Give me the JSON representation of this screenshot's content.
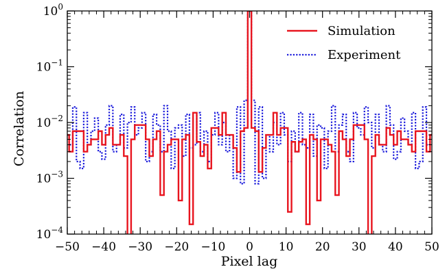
{
  "chart_data": {
    "type": "line",
    "xlabel": "Pixel lag",
    "ylabel": "Correlation",
    "xlim": [
      -50,
      50
    ],
    "ylim": [
      0.0001,
      1
    ],
    "yscale": "log",
    "step": "mid",
    "xticks": [
      "−50",
      "−40",
      "−30",
      "−20",
      "−10",
      "0",
      "10",
      "20",
      "30",
      "40",
      "50"
    ],
    "xtick_values": [
      -50,
      -40,
      -30,
      -20,
      -10,
      0,
      10,
      20,
      30,
      40,
      50
    ],
    "yticks": [
      {
        "value": 0.0001,
        "base": "10",
        "exp": "−4"
      },
      {
        "value": 0.001,
        "base": "10",
        "exp": "−3"
      },
      {
        "value": 0.01,
        "base": "10",
        "exp": "−2"
      },
      {
        "value": 0.1,
        "base": "10",
        "exp": "−1"
      },
      {
        "value": 1,
        "base": "10",
        "exp": "0"
      }
    ],
    "legend_position": "top-right",
    "grid": false,
    "x": [
      -50,
      -49,
      -48,
      -47,
      -46,
      -45,
      -44,
      -43,
      -42,
      -41,
      -40,
      -39,
      -38,
      -37,
      -36,
      -35,
      -34,
      -33,
      -32,
      -31,
      -30,
      -29,
      -28,
      -27,
      -26,
      -25,
      -24,
      -23,
      -22,
      -21,
      -20,
      -19,
      -18,
      -17,
      -16,
      -15,
      -14,
      -13,
      -12,
      -11,
      -10,
      -9,
      -8,
      -7,
      -6,
      -5,
      -4,
      -3,
      -2,
      -1,
      0,
      1,
      2,
      3,
      4,
      5,
      6,
      7,
      8,
      9,
      10,
      11,
      12,
      13,
      14,
      15,
      16,
      17,
      18,
      19,
      20,
      21,
      22,
      23,
      24,
      25,
      26,
      27,
      28,
      29,
      30,
      31,
      32,
      33,
      34,
      35,
      36,
      37,
      38,
      39,
      40,
      41,
      42,
      43,
      44,
      45,
      46,
      47,
      48,
      49,
      50
    ],
    "series": [
      {
        "name": "Experiment",
        "color": "#1a1adb",
        "style": "dotted",
        "values": [
          0.006,
          0.004,
          0.019,
          0.002,
          0.0015,
          0.015,
          0.004,
          0.007,
          0.012,
          0.003,
          0.0022,
          0.009,
          0.02,
          0.003,
          0.004,
          0.014,
          0.0035,
          0.01,
          0.019,
          0.006,
          0.008,
          0.015,
          0.002,
          0.003,
          0.014,
          0.009,
          0.003,
          0.02,
          0.007,
          0.0015,
          0.008,
          0.009,
          0.0025,
          0.014,
          0.0035,
          0.004,
          0.015,
          0.003,
          0.007,
          0.002,
          0.006,
          0.015,
          0.004,
          0.01,
          0.003,
          0.006,
          0.001,
          0.019,
          0.0008,
          0.025,
          1.0,
          0.025,
          0.0008,
          0.019,
          0.001,
          0.006,
          0.003,
          0.01,
          0.004,
          0.015,
          0.006,
          0.002,
          0.007,
          0.003,
          0.015,
          0.004,
          0.0035,
          0.014,
          0.0025,
          0.009,
          0.008,
          0.0015,
          0.007,
          0.02,
          0.003,
          0.009,
          0.014,
          0.003,
          0.002,
          0.015,
          0.008,
          0.006,
          0.019,
          0.01,
          0.0035,
          0.014,
          0.004,
          0.003,
          0.02,
          0.009,
          0.0022,
          0.003,
          0.012,
          0.007,
          0.004,
          0.015,
          0.0015,
          0.002,
          0.019,
          0.004,
          0.006
        ]
      },
      {
        "name": "Simulation",
        "color": "#e8141e",
        "style": "solid",
        "values": [
          0.006,
          0.003,
          0.007,
          0.007,
          0.007,
          0.003,
          0.004,
          0.005,
          0.005,
          0.007,
          0.004,
          0.006,
          0.008,
          0.004,
          0.004,
          0.006,
          0.0025,
          8e-05,
          0.005,
          0.009,
          0.009,
          0.009,
          0.005,
          0.0025,
          0.005,
          0.007,
          0.0005,
          0.003,
          0.004,
          0.005,
          0.005,
          0.0004,
          0.005,
          0.006,
          0.00015,
          0.015,
          0.0045,
          0.0025,
          0.004,
          0.0015,
          0.008,
          0.008,
          0.006,
          0.015,
          0.006,
          0.006,
          0.0035,
          0.0013,
          0.007,
          0.008,
          1.0,
          0.008,
          0.007,
          0.0013,
          0.0035,
          0.006,
          0.006,
          0.015,
          0.006,
          0.008,
          0.008,
          0.00025,
          0.0045,
          0.003,
          0.0045,
          0.005,
          0.00015,
          0.006,
          0.005,
          0.0004,
          0.005,
          0.005,
          0.004,
          0.003,
          0.0005,
          0.007,
          0.005,
          0.0025,
          0.005,
          0.009,
          0.009,
          0.009,
          0.005,
          8e-05,
          0.0025,
          0.006,
          0.004,
          0.004,
          0.008,
          0.006,
          0.004,
          0.007,
          0.005,
          0.005,
          0.004,
          0.003,
          0.007,
          0.007,
          0.007,
          0.003,
          0.006
        ]
      }
    ]
  }
}
